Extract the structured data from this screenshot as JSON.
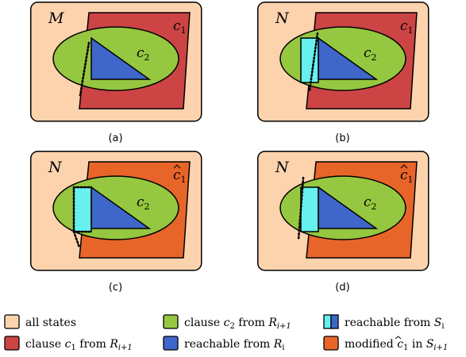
{
  "panels": [
    {
      "id": "a",
      "set_label": "M",
      "clause_label": "c",
      "clause_sub": "1",
      "clause_hat": false,
      "inner_label": "c",
      "inner_sub": "2",
      "caption": "(a)",
      "variant": "a"
    },
    {
      "id": "b",
      "set_label": "N",
      "clause_label": "c",
      "clause_sub": "1",
      "clause_hat": false,
      "inner_label": "c",
      "inner_sub": "2",
      "caption": "(b)",
      "variant": "b"
    },
    {
      "id": "c",
      "set_label": "N",
      "clause_label": "c",
      "clause_sub": "1",
      "clause_hat": true,
      "inner_label": "c",
      "inner_sub": "2",
      "caption": "(c)",
      "variant": "c"
    },
    {
      "id": "d",
      "set_label": "N",
      "clause_label": "c",
      "clause_sub": "1",
      "clause_hat": true,
      "inner_label": "c",
      "inner_sub": "2",
      "caption": "(d)",
      "variant": "d"
    }
  ],
  "colors": {
    "all_states": "#fdd3ae",
    "clause_c1": "#cc4444",
    "modified_c1": "#e8652a",
    "clause_c2": "#96c740",
    "reachable_R": "#3f67c9",
    "reachable_S": "#66f0ee",
    "stroke": "#000000"
  },
  "legend": [
    {
      "key": "all_states",
      "text": "all states",
      "sym": "",
      "sub": "",
      "hat": false,
      "tail": ""
    },
    {
      "key": "clause_c2",
      "text": "clause ",
      "sym": "c",
      "sub": "2",
      "hat": false,
      "tail": " from R",
      "tail_sub": "i+1"
    },
    {
      "key": "reachable_S",
      "text": "reachable from ",
      "sym": "S",
      "sub": "i",
      "hat": false,
      "tail": "",
      "split": true
    },
    {
      "key": "clause_c1",
      "text": "clause ",
      "sym": "c",
      "sub": "1",
      "hat": false,
      "tail": " from R",
      "tail_sub": "i+1"
    },
    {
      "key": "reachable_R",
      "text": "reachable from ",
      "sym": "R",
      "sub": "i",
      "hat": false,
      "tail": ""
    },
    {
      "key": "modified_c1",
      "text": "modified ",
      "sym": "c",
      "sub": "1",
      "hat": true,
      "tail": " in S",
      "tail_sub": "i+1"
    }
  ]
}
